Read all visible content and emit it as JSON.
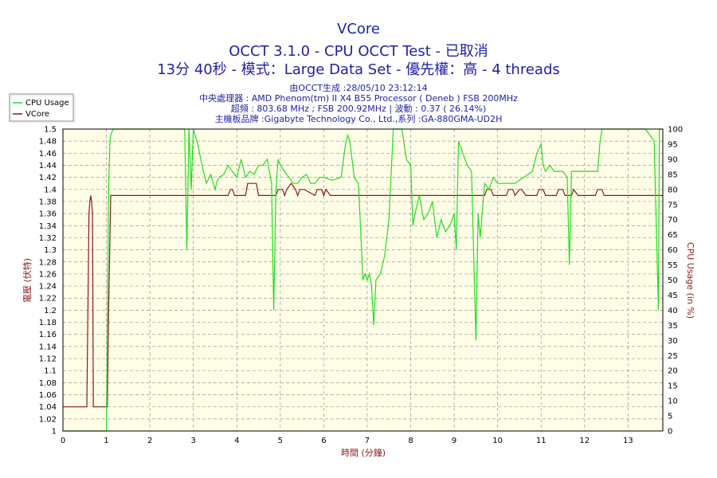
{
  "header": {
    "title": "VCore",
    "subtitle": "OCCT 3.1.0 - CPU OCCT Test - 已取消",
    "subtitle2": "13分 40秒 - 模式：Large Data Set - 優先權：高 - 4 threads",
    "info": [
      "由OCCT生成 :28/05/10 23:12:14",
      "中央處理器 : AMD Phenom(tm) II X4 B55 Processor ( Deneb ) FSB 200MHz",
      "超頻 : 803.68 MHz ; FSB 200.92MHz | 波動 : 0.37 ( 26.14%)",
      "主機板品牌 :Gigabyte Technology Co., Ltd.,系列 :GA-880GMA-UD2H"
    ]
  },
  "colors": {
    "cpu_usage": "#22dd22",
    "vcore": "#8b1a1a",
    "plot_bg": "#fffde6",
    "grid": "#999999",
    "text": "#1f1fa8"
  },
  "chart_data": {
    "type": "line",
    "title": "VCore",
    "xlabel": "時間 (分鐘)",
    "ylabel_left": "電壓 (伏特)",
    "ylabel_right": "CPU Usage (in %)",
    "xlim": [
      0,
      13.8
    ],
    "ylim_left": [
      1.0,
      1.5
    ],
    "ylim_right": [
      0,
      100
    ],
    "x_ticks": [
      0,
      1,
      2,
      3,
      4,
      5,
      6,
      7,
      8,
      9,
      10,
      11,
      12,
      13
    ],
    "y_left_ticks": [
      1,
      1.02,
      1.04,
      1.06,
      1.08,
      1.1,
      1.12,
      1.14,
      1.16,
      1.18,
      1.2,
      1.22,
      1.24,
      1.26,
      1.28,
      1.3,
      1.32,
      1.34,
      1.36,
      1.38,
      1.4,
      1.42,
      1.44,
      1.46,
      1.48,
      1.5
    ],
    "y_right_ticks": [
      0,
      5,
      10,
      15,
      20,
      25,
      30,
      35,
      40,
      45,
      50,
      55,
      60,
      65,
      70,
      75,
      80,
      85,
      90,
      95,
      100
    ],
    "grid": true,
    "legend": "top-left",
    "series": [
      {
        "name": "CPU Usage",
        "axis": "right",
        "x": [
          0,
          0.98,
          1.0,
          1.02,
          1.05,
          1.08,
          1.1,
          1.15,
          1.2,
          1.5,
          2.0,
          2.5,
          2.8,
          2.85,
          2.9,
          2.95,
          3.0,
          3.1,
          3.2,
          3.3,
          3.4,
          3.5,
          3.55,
          3.6,
          3.7,
          3.8,
          3.9,
          4.0,
          4.1,
          4.2,
          4.3,
          4.4,
          4.5,
          4.6,
          4.7,
          4.8,
          4.85,
          4.9,
          4.95,
          5.0,
          5.1,
          5.2,
          5.3,
          5.4,
          5.5,
          5.6,
          5.7,
          5.8,
          5.9,
          6.0,
          6.2,
          6.4,
          6.5,
          6.55,
          6.6,
          6.7,
          6.8,
          6.85,
          6.9,
          6.95,
          7.0,
          7.05,
          7.1,
          7.15,
          7.2,
          7.3,
          7.4,
          7.5,
          7.6,
          7.7,
          7.8,
          7.9,
          8.0,
          8.05,
          8.1,
          8.2,
          8.3,
          8.4,
          8.5,
          8.6,
          8.7,
          8.8,
          8.9,
          9.0,
          9.05,
          9.1,
          9.2,
          9.3,
          9.4,
          9.5,
          9.55,
          9.6,
          9.7,
          9.8,
          9.9,
          10.0,
          10.2,
          10.4,
          10.6,
          10.8,
          10.9,
          11.0,
          11.05,
          11.1,
          11.2,
          11.3,
          11.4,
          11.5,
          11.6,
          11.65,
          11.7,
          11.8,
          12.0,
          12.2,
          12.3,
          12.35,
          12.4,
          12.6,
          12.8,
          13.0,
          13.2,
          13.4,
          13.6,
          13.7,
          13.72,
          13.75,
          13.8
        ],
        "values": [
          0,
          0,
          0,
          30,
          80,
          95,
          98,
          100,
          100,
          100,
          100,
          100,
          100,
          60,
          100,
          80,
          100,
          95,
          88,
          82,
          85,
          80,
          83,
          84,
          85,
          88,
          86,
          84,
          90,
          84,
          86,
          85,
          88,
          88,
          90,
          82,
          40,
          80,
          90,
          88,
          86,
          84,
          82,
          82,
          84,
          85,
          82,
          82,
          84,
          84,
          83,
          84,
          95,
          98,
          96,
          84,
          82,
          66,
          50,
          52,
          50,
          52,
          48,
          35,
          50,
          52,
          58,
          70,
          100,
          100,
          100,
          90,
          88,
          68,
          72,
          78,
          70,
          72,
          76,
          64,
          70,
          66,
          68,
          72,
          60,
          96,
          92,
          88,
          86,
          30,
          72,
          64,
          82,
          80,
          84,
          82,
          82,
          82,
          84,
          86,
          92,
          95,
          88,
          86,
          88,
          86,
          86,
          86,
          84,
          55,
          86,
          86,
          86,
          86,
          86,
          95,
          100,
          100,
          100,
          100,
          100,
          100,
          96,
          40,
          100,
          100,
          100
        ]
      },
      {
        "name": "VCore",
        "axis": "left",
        "x": [
          0,
          0.55,
          0.6,
          0.62,
          0.64,
          0.66,
          0.68,
          0.7,
          1.02,
          1.05,
          1.1,
          1.12,
          3.8,
          3.85,
          3.9,
          3.95,
          4.2,
          4.25,
          4.35,
          4.45,
          4.5,
          4.55,
          4.65,
          4.9,
          4.95,
          5.05,
          5.1,
          5.15,
          5.25,
          5.35,
          5.4,
          5.45,
          5.55,
          5.8,
          5.85,
          5.95,
          6.0,
          6.05,
          6.15,
          9.7,
          9.75,
          9.85,
          9.9,
          10.2,
          10.25,
          10.35,
          10.4,
          10.5,
          10.55,
          10.65,
          10.9,
          10.95,
          11.05,
          11.1,
          11.35,
          11.4,
          11.5,
          11.55,
          11.7,
          11.75,
          11.85,
          12.25,
          12.3,
          12.4,
          12.45,
          13.8
        ],
        "values": [
          1.04,
          1.04,
          1.36,
          1.38,
          1.39,
          1.38,
          1.36,
          1.04,
          1.04,
          1.2,
          1.39,
          1.39,
          1.39,
          1.4,
          1.4,
          1.39,
          1.39,
          1.41,
          1.41,
          1.41,
          1.39,
          1.39,
          1.39,
          1.39,
          1.4,
          1.4,
          1.39,
          1.4,
          1.41,
          1.4,
          1.39,
          1.4,
          1.4,
          1.39,
          1.4,
          1.4,
          1.39,
          1.4,
          1.39,
          1.39,
          1.4,
          1.4,
          1.39,
          1.39,
          1.4,
          1.4,
          1.39,
          1.4,
          1.4,
          1.39,
          1.39,
          1.4,
          1.4,
          1.39,
          1.39,
          1.4,
          1.4,
          1.39,
          1.39,
          1.4,
          1.39,
          1.39,
          1.4,
          1.4,
          1.39,
          1.39
        ]
      }
    ]
  }
}
